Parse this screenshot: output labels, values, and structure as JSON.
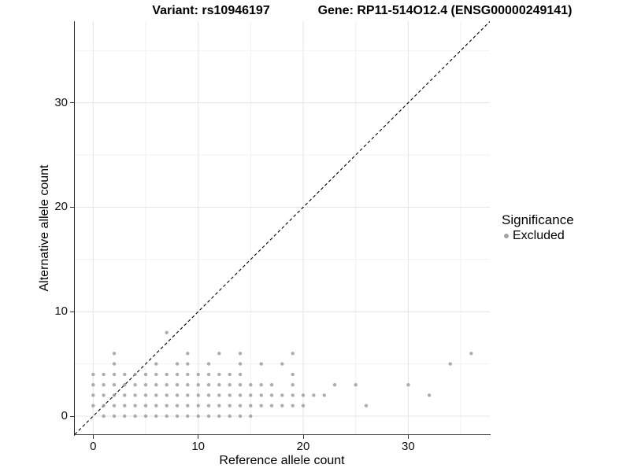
{
  "titles": {
    "variant": "Variant: rs10946197",
    "gene": "Gene: RP11-514O12.4 (ENSG00000249141)"
  },
  "axes": {
    "x": {
      "label": "Reference allele count",
      "major_ticks": [
        0,
        10,
        20,
        30
      ],
      "minor_ticks": [
        5,
        15,
        25,
        35
      ],
      "range": [
        -1.75,
        37.8
      ]
    },
    "y": {
      "label": "Alternative allele count",
      "major_ticks": [
        0,
        10,
        20,
        30
      ],
      "minor_ticks": [
        5,
        15,
        25,
        35
      ],
      "range": [
        -1.73,
        37.8
      ]
    }
  },
  "legend": {
    "title": "Significance",
    "items": [
      {
        "label": "Excluded",
        "color": "#a3a3a3"
      }
    ]
  },
  "colors": {
    "point": "#999999",
    "point_opacity": 0.8,
    "grid_major": "#e4e4e4",
    "grid_minor": "#f1f1f1",
    "identity_line": "#000000",
    "axis_line": "#333333"
  },
  "chart_data": {
    "type": "scatter",
    "title_left": "Variant: rs10946197",
    "title_right": "Gene: RP11-514O12.4 (ENSG00000249141)",
    "xlabel": "Reference allele count",
    "ylabel": "Alternative allele count",
    "xlim": [
      -1.75,
      37.8
    ],
    "ylim": [
      -1.73,
      37.8
    ],
    "grid": "on",
    "legend_position": "right",
    "identity_line": {
      "style": "dashed",
      "slope": 1,
      "intercept": 0
    },
    "series": [
      {
        "name": "Excluded",
        "points": [
          [
            1,
            0
          ],
          [
            2,
            0
          ],
          [
            3,
            0
          ],
          [
            4,
            0
          ],
          [
            5,
            0
          ],
          [
            6,
            0
          ],
          [
            7,
            0
          ],
          [
            8,
            0
          ],
          [
            9,
            0
          ],
          [
            10,
            0
          ],
          [
            11,
            0
          ],
          [
            12,
            0
          ],
          [
            13,
            0
          ],
          [
            14,
            0
          ],
          [
            15,
            0
          ],
          [
            0,
            1
          ],
          [
            1,
            1
          ],
          [
            2,
            1
          ],
          [
            3,
            1
          ],
          [
            4,
            1
          ],
          [
            5,
            1
          ],
          [
            6,
            1
          ],
          [
            7,
            1
          ],
          [
            8,
            1
          ],
          [
            9,
            1
          ],
          [
            10,
            1
          ],
          [
            11,
            1
          ],
          [
            12,
            1
          ],
          [
            13,
            1
          ],
          [
            14,
            1
          ],
          [
            15,
            1
          ],
          [
            16,
            1
          ],
          [
            17,
            1
          ],
          [
            18,
            1
          ],
          [
            19,
            1
          ],
          [
            20,
            1
          ],
          [
            26,
            1
          ],
          [
            0,
            2
          ],
          [
            1,
            2
          ],
          [
            2,
            2
          ],
          [
            3,
            2
          ],
          [
            4,
            2
          ],
          [
            5,
            2
          ],
          [
            6,
            2
          ],
          [
            7,
            2
          ],
          [
            8,
            2
          ],
          [
            9,
            2
          ],
          [
            10,
            2
          ],
          [
            11,
            2
          ],
          [
            12,
            2
          ],
          [
            13,
            2
          ],
          [
            14,
            2
          ],
          [
            15,
            2
          ],
          [
            16,
            2
          ],
          [
            17,
            2
          ],
          [
            18,
            2
          ],
          [
            19,
            2
          ],
          [
            20,
            2
          ],
          [
            21,
            2
          ],
          [
            22,
            2
          ],
          [
            32,
            2
          ],
          [
            0,
            3
          ],
          [
            1,
            3
          ],
          [
            2,
            3
          ],
          [
            3,
            3
          ],
          [
            4,
            3
          ],
          [
            5,
            3
          ],
          [
            6,
            3
          ],
          [
            7,
            3
          ],
          [
            8,
            3
          ],
          [
            9,
            3
          ],
          [
            10,
            3
          ],
          [
            11,
            3
          ],
          [
            12,
            3
          ],
          [
            13,
            3
          ],
          [
            14,
            3
          ],
          [
            15,
            3
          ],
          [
            16,
            3
          ],
          [
            17,
            3
          ],
          [
            19,
            3
          ],
          [
            23,
            3
          ],
          [
            25,
            3
          ],
          [
            30,
            3
          ],
          [
            0,
            4
          ],
          [
            1,
            4
          ],
          [
            2,
            4
          ],
          [
            3,
            4
          ],
          [
            4,
            4
          ],
          [
            5,
            4
          ],
          [
            6,
            4
          ],
          [
            7,
            4
          ],
          [
            8,
            4
          ],
          [
            9,
            4
          ],
          [
            10,
            4
          ],
          [
            11,
            4
          ],
          [
            12,
            4
          ],
          [
            13,
            4
          ],
          [
            14,
            4
          ],
          [
            19,
            4
          ],
          [
            2,
            5
          ],
          [
            6,
            5
          ],
          [
            8,
            5
          ],
          [
            9,
            5
          ],
          [
            11,
            5
          ],
          [
            14,
            5
          ],
          [
            16,
            5
          ],
          [
            18,
            5
          ],
          [
            34,
            5
          ],
          [
            2,
            6
          ],
          [
            9,
            6
          ],
          [
            12,
            6
          ],
          [
            14,
            6
          ],
          [
            19,
            6
          ],
          [
            36,
            6
          ],
          [
            7,
            8
          ]
        ]
      }
    ]
  }
}
